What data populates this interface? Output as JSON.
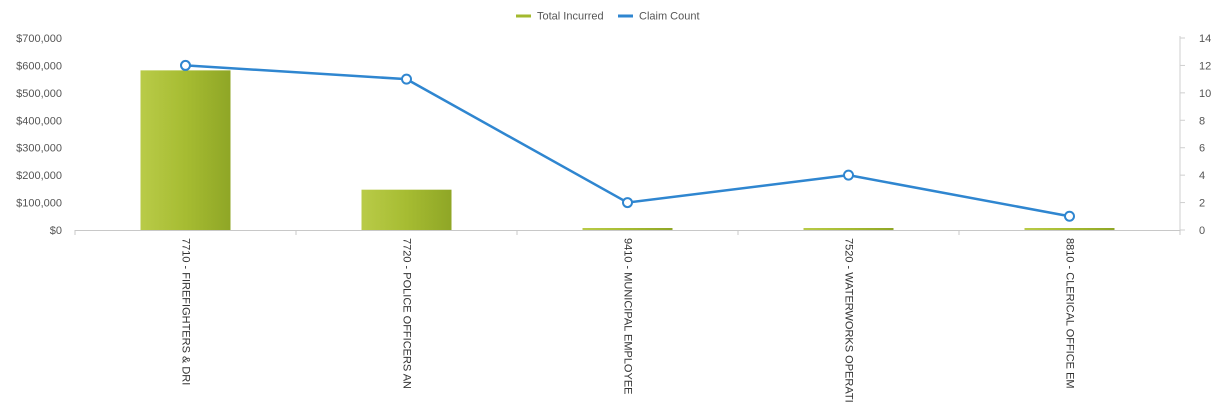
{
  "chart_data": {
    "type": "bar",
    "legend_position": "top-center",
    "categories": [
      "7710 - FIREFIGHTERS & DRI",
      "7720 - POLICE OFFICERS AN",
      "9410 - MUNICIPAL EMPLOYEE",
      "7520 - WATERWORKS OPERATI",
      "8810 - CLERICAL OFFICE EM"
    ],
    "series": [
      {
        "name": "Total Incurred",
        "type": "bar",
        "axis": "left",
        "color": "#a3b92e",
        "values": [
          582000,
          147000,
          5000,
          7000,
          1000
        ]
      },
      {
        "name": "Claim Count",
        "type": "line",
        "axis": "right",
        "color": "#2f86d0",
        "values": [
          12,
          11,
          2,
          4,
          1
        ]
      }
    ],
    "y_left": {
      "ylim": [
        0,
        700000
      ],
      "ticks": [
        "$0",
        "$100,000",
        "$200,000",
        "$300,000",
        "$400,000",
        "$500,000",
        "$600,000",
        "$700,000"
      ]
    },
    "y_right": {
      "ylim": [
        0,
        14
      ],
      "ticks": [
        "0",
        "2",
        "4",
        "6",
        "8",
        "10",
        "12",
        "14"
      ]
    },
    "grid": false
  }
}
